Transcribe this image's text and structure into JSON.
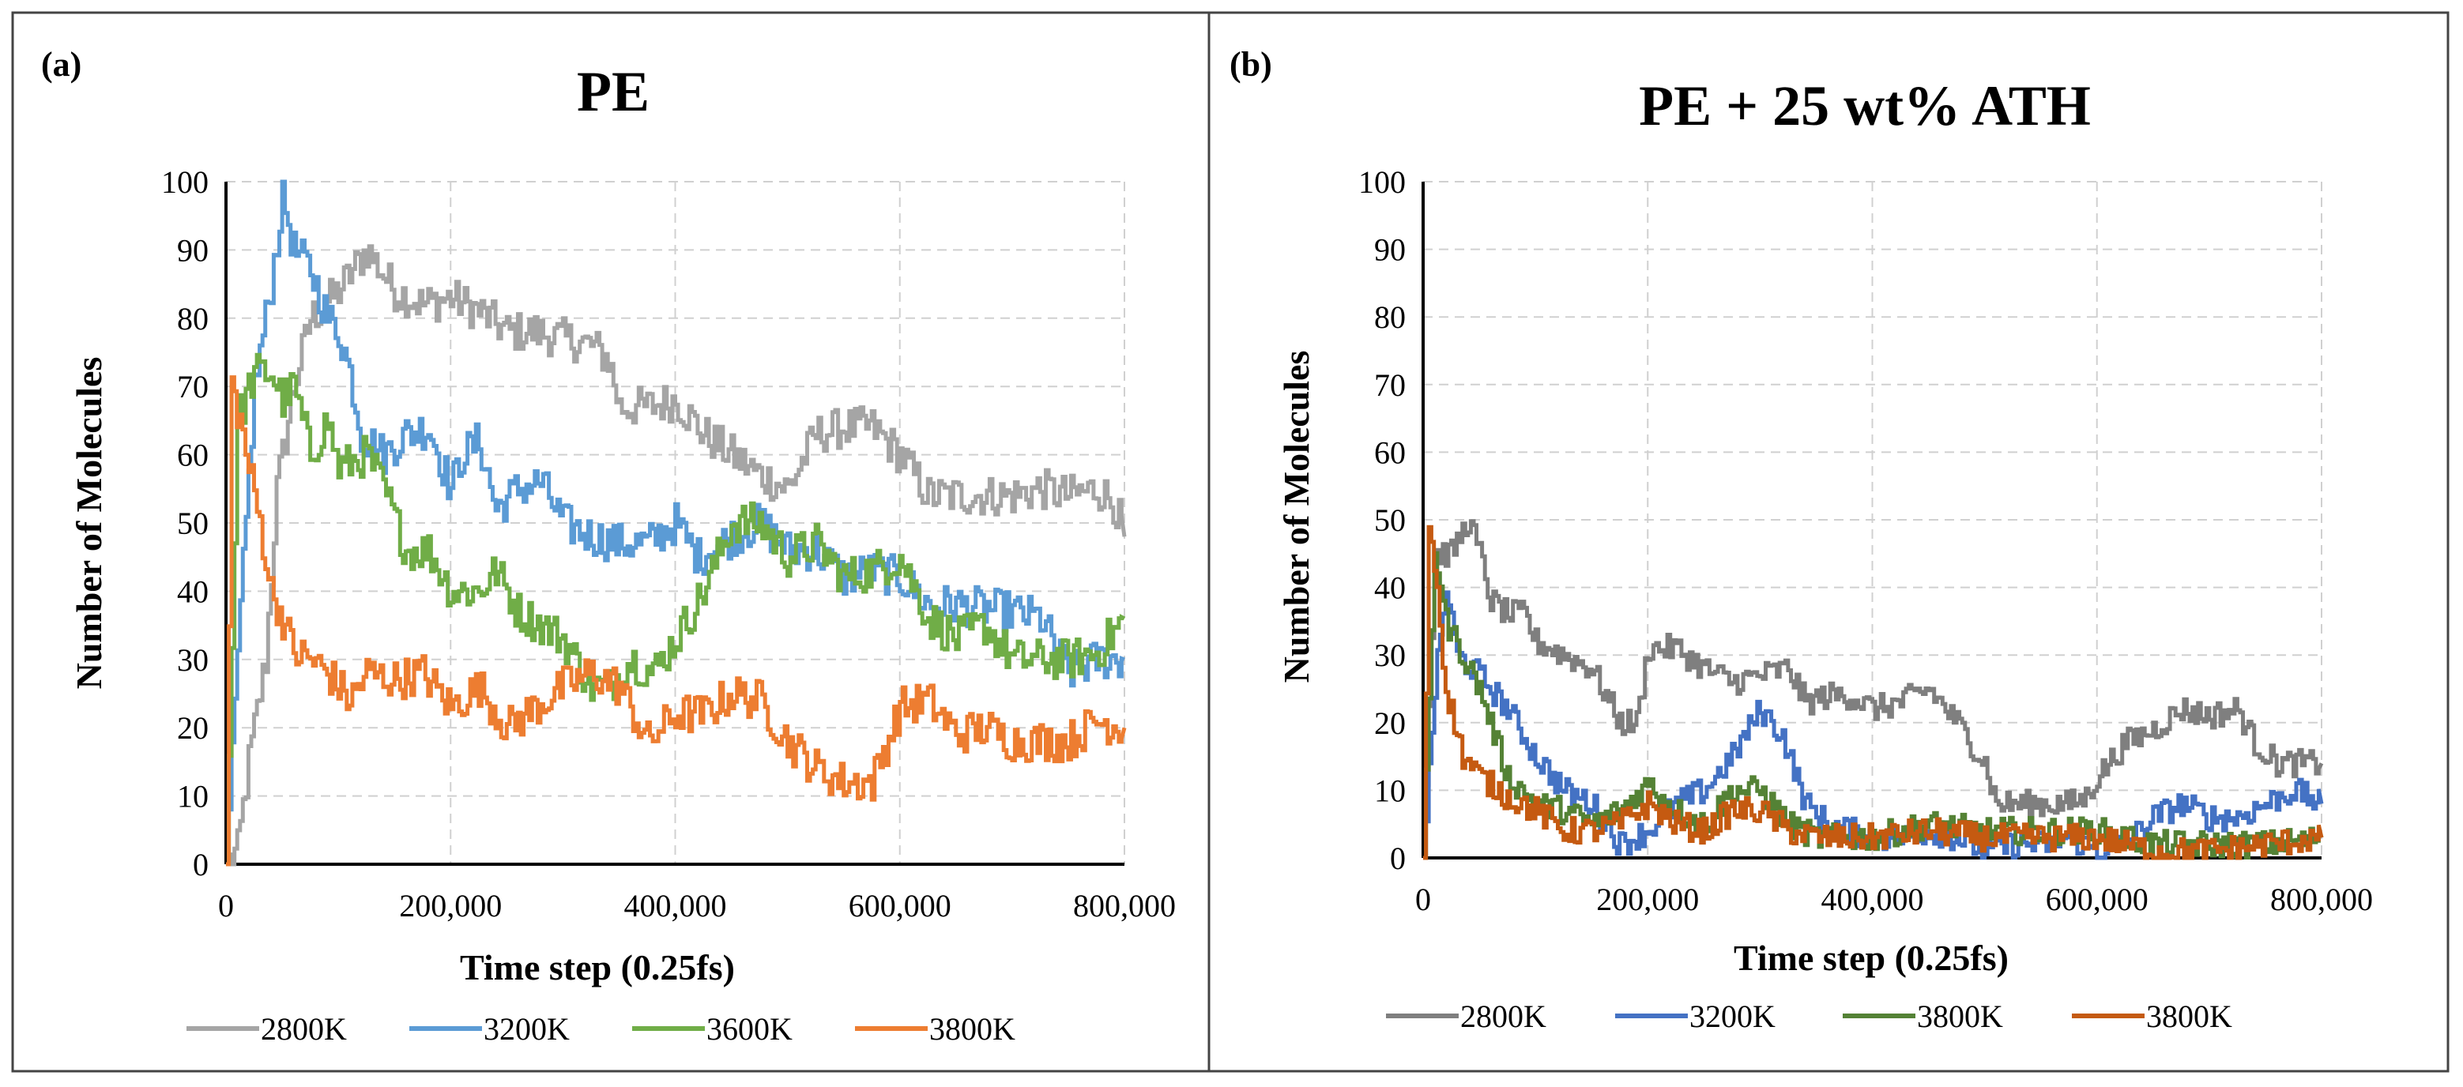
{
  "chart_data": [
    {
      "type": "line",
      "panel_label": "(a)",
      "title": "PE",
      "xlabel": "Time step (0.25fs)",
      "ylabel": "Number of Molecules",
      "xlim": [
        0,
        800000
      ],
      "ylim": [
        0,
        100
      ],
      "xticks": [
        "0",
        "200,000",
        "400,000",
        "600,000",
        "800,000"
      ],
      "yticks": [
        "0",
        "10",
        "20",
        "30",
        "40",
        "50",
        "60",
        "70",
        "80",
        "90",
        "100"
      ],
      "grid": true,
      "legend": "bottom",
      "series": [
        {
          "name": "2800K",
          "color": "#A5A5A5",
          "x": [
            0,
            10000,
            20000,
            35000,
            45000,
            60000,
            75000,
            100000,
            125000,
            150000,
            175000,
            200000,
            225000,
            250000,
            275000,
            300000,
            325000,
            340000,
            350000,
            375000,
            400000,
            425000,
            450000,
            475000,
            500000,
            525000,
            550000,
            575000,
            600000,
            625000,
            650000,
            700000,
            725000,
            750000,
            775000,
            790000,
            800000
          ],
          "y": [
            0,
            2,
            15,
            30,
            55,
            70,
            80,
            84,
            90,
            84,
            82,
            83,
            81,
            78,
            78,
            77,
            76,
            74,
            67,
            67,
            68,
            63,
            60,
            57,
            55,
            63,
            64,
            64,
            60,
            54,
            54,
            54,
            55,
            54,
            55,
            53,
            48
          ]
        },
        {
          "name": "3200K",
          "color": "#5B9BD5",
          "x": [
            0,
            10000,
            25000,
            40000,
            50000,
            60000,
            75000,
            90000,
            100000,
            110000,
            120000,
            140000,
            160000,
            180000,
            200000,
            210000,
            225000,
            240000,
            260000,
            280000,
            300000,
            325000,
            350000,
            375000,
            400000,
            420000,
            450000,
            475000,
            500000,
            525000,
            550000,
            575000,
            600000,
            625000,
            650000,
            700000,
            725000,
            750000,
            775000,
            800000
          ],
          "y": [
            0,
            30,
            70,
            85,
            98,
            90,
            87,
            80,
            78,
            72,
            63,
            60,
            63,
            64,
            55,
            60,
            62,
            52,
            55,
            56,
            50,
            48,
            47,
            47,
            50,
            45,
            48,
            50,
            46,
            46,
            42,
            43,
            42,
            38,
            38,
            37,
            36,
            28,
            30,
            30
          ]
        },
        {
          "name": "3600K",
          "color": "#70AD47",
          "x": [
            0,
            10000,
            25000,
            40000,
            50000,
            60000,
            75000,
            90000,
            100000,
            125000,
            140000,
            160000,
            180000,
            200000,
            225000,
            240000,
            260000,
            280000,
            300000,
            325000,
            340000,
            360000,
            380000,
            400000,
            425000,
            450000,
            475000,
            500000,
            525000,
            550000,
            575000,
            600000,
            625000,
            650000,
            675000,
            700000,
            725000,
            750000,
            775000,
            800000
          ],
          "y": [
            0,
            65,
            72,
            72,
            68,
            70,
            60,
            65,
            58,
            60,
            55,
            46,
            46,
            40,
            40,
            43,
            37,
            35,
            33,
            26,
            26,
            30,
            28,
            33,
            40,
            50,
            50,
            45,
            47,
            42,
            43,
            45,
            36,
            33,
            35,
            30,
            30,
            30,
            31,
            36
          ]
        },
        {
          "name": "3800K",
          "color": "#ED7D31",
          "x": [
            0,
            5000,
            12000,
            20000,
            30000,
            40000,
            50000,
            60000,
            75000,
            90000,
            110000,
            125000,
            150000,
            175000,
            200000,
            225000,
            250000,
            275000,
            300000,
            325000,
            350000,
            375000,
            400000,
            425000,
            450000,
            475000,
            500000,
            525000,
            550000,
            575000,
            600000,
            625000,
            650000,
            675000,
            700000,
            725000,
            750000,
            775000,
            800000
          ],
          "y": [
            0,
            70,
            65,
            58,
            50,
            40,
            36,
            31,
            30,
            28,
            24,
            28,
            27,
            28,
            23,
            26,
            20,
            23,
            26,
            28,
            26,
            18,
            22,
            22,
            25,
            24,
            18,
            14,
            12,
            12,
            23,
            24,
            19,
            20,
            18,
            18,
            18,
            21,
            20
          ]
        }
      ]
    },
    {
      "type": "line",
      "panel_label": "(b)",
      "title": "PE + 25 wt% ATH",
      "xlabel": "Time step (0.25fs)",
      "ylabel": "Number of Molecules",
      "xlim": [
        0,
        800000
      ],
      "ylim": [
        0,
        100
      ],
      "xticks": [
        "0",
        "200,000",
        "400,000",
        "600,000",
        "800,000"
      ],
      "yticks": [
        "0",
        "10",
        "20",
        "30",
        "40",
        "50",
        "60",
        "70",
        "80",
        "90",
        "100"
      ],
      "grid": true,
      "legend": "bottom",
      "series": [
        {
          "name": "2800K",
          "color": "#7F7F7F",
          "x": [
            0,
            10000,
            25000,
            40000,
            50000,
            60000,
            75000,
            90000,
            100000,
            125000,
            150000,
            175000,
            190000,
            200000,
            225000,
            250000,
            275000,
            300000,
            325000,
            340000,
            360000,
            380000,
            400000,
            425000,
            450000,
            475000,
            500000,
            510000,
            525000,
            550000,
            575000,
            590000,
            600000,
            625000,
            650000,
            675000,
            700000,
            725000,
            740000,
            760000,
            780000,
            800000
          ],
          "y": [
            0,
            45,
            45,
            50,
            45,
            38,
            36,
            36,
            32,
            30,
            28,
            20,
            20,
            31,
            31,
            28,
            26,
            27,
            28,
            23,
            24,
            24,
            22,
            23,
            25,
            20,
            14,
            8,
            8,
            8,
            8,
            9,
            12,
            17,
            19,
            22,
            21,
            22,
            17,
            14,
            14,
            14
          ]
        },
        {
          "name": "3200K",
          "color": "#4472C4",
          "x": [
            0,
            10000,
            20000,
            30000,
            50000,
            75000,
            100000,
            125000,
            150000,
            175000,
            200000,
            225000,
            250000,
            275000,
            300000,
            320000,
            340000,
            360000,
            400000,
            425000,
            450000,
            475000,
            500000,
            525000,
            550000,
            575000,
            600000,
            625000,
            650000,
            675000,
            700000,
            725000,
            750000,
            775000,
            800000
          ],
          "y": [
            0,
            25,
            40,
            30,
            27,
            22,
            15,
            10,
            8,
            2,
            4,
            8,
            10,
            15,
            22,
            18,
            8,
            5,
            3,
            3,
            4,
            3,
            1,
            2,
            2,
            3,
            1,
            2,
            6,
            8,
            6,
            6,
            8,
            10,
            8
          ]
        },
        {
          "name": "3800K",
          "color": "#548235",
          "x": [
            0,
            10000,
            20000,
            35000,
            50000,
            75000,
            100000,
            125000,
            150000,
            175000,
            200000,
            225000,
            250000,
            275000,
            300000,
            325000,
            350000,
            400000,
            450000,
            500000,
            550000,
            600000,
            650000,
            700000,
            750000,
            800000
          ],
          "y": [
            0,
            46,
            35,
            30,
            25,
            12,
            8,
            7,
            5,
            7,
            11,
            7,
            5,
            10,
            10,
            5,
            3,
            3,
            5,
            4,
            4,
            4,
            2,
            2,
            2,
            3
          ]
        },
        {
          "name": "3800K",
          "color": "#C55A11",
          "x": [
            0,
            5000,
            12000,
            20000,
            35000,
            50000,
            75000,
            100000,
            125000,
            150000,
            175000,
            200000,
            225000,
            250000,
            275000,
            300000,
            325000,
            350000,
            400000,
            450000,
            500000,
            550000,
            600000,
            650000,
            700000,
            750000,
            800000
          ],
          "y": [
            0,
            50,
            40,
            25,
            15,
            12,
            9,
            7,
            4,
            4,
            5,
            8,
            5,
            4,
            7,
            7,
            4,
            3,
            3,
            4,
            3,
            3,
            3,
            1,
            1,
            2,
            3
          ]
        }
      ]
    }
  ]
}
